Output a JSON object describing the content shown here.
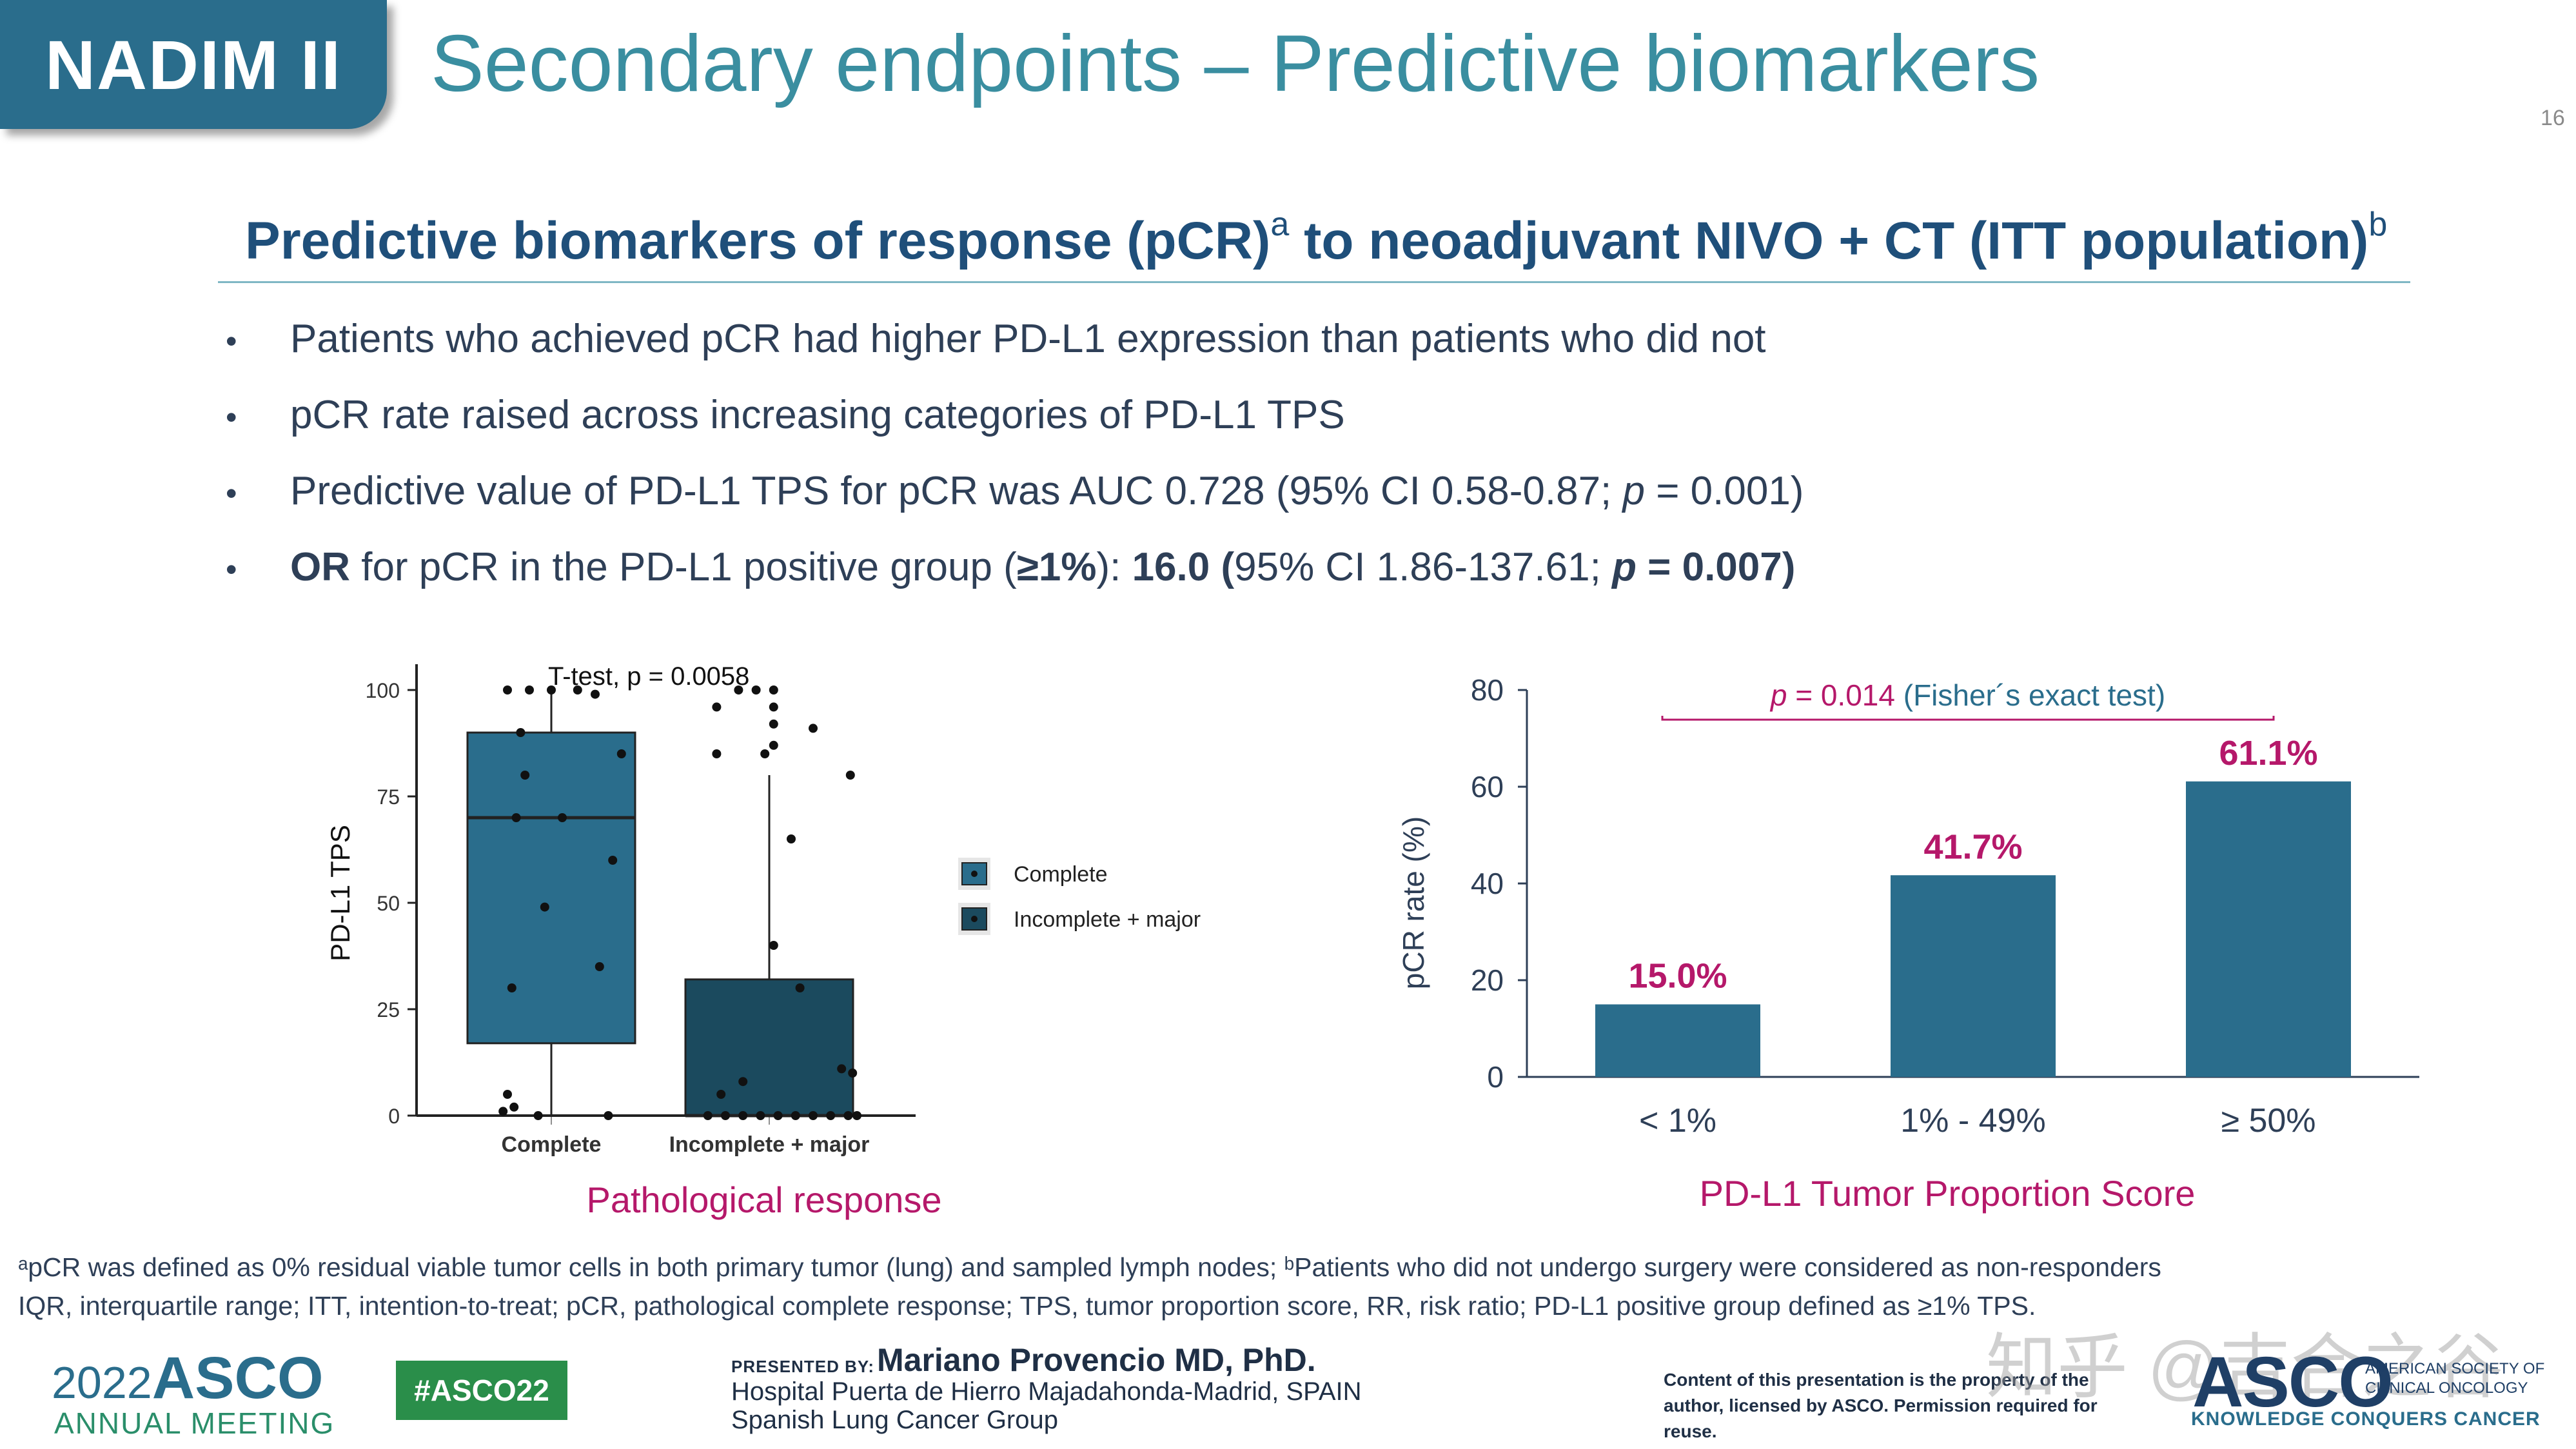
{
  "header": {
    "badge": "NADIM II",
    "title": "Secondary endpoints – Predictive biomarkers",
    "page_number": "16",
    "accent_color": "#2a6d8c"
  },
  "subtitle": {
    "main": "Predictive biomarkers of response (pCR)",
    "sup_a": "a",
    "rest": " to neoadjuvant NIVO + CT (ITT population)",
    "sup_b": "b"
  },
  "bullets": {
    "b1": "Patients who achieved pCR had higher PD-L1 expression than patients who did not",
    "b2": "pCR rate raised across increasing categories of PD-L1 TPS",
    "b3_pre": "Predictive value of PD-L1 TPS for pCR was AUC 0.728 (95% CI 0.58-0.87; ",
    "b3_p": "p",
    "b3_post": " = 0.001)",
    "b4_or": "OR",
    "b4_mid": " for pCR  in the PD-L1 positive group (",
    "b4_ge": "≥1%",
    "b4_after": "): ",
    "b4_val": "16.0 (",
    "b4_ci": "95% CI 1.86-137.61; ",
    "b4_p": "p",
    "b4_pval": " = 0.007)",
    "bullet_char": "•"
  },
  "chart_data": [
    {
      "type": "box",
      "title": "T-test, p = 0.0058",
      "ylabel": "PD-L1 TPS",
      "xlabel": "Pathological response",
      "ylim": [
        0,
        100
      ],
      "yticks": [
        "0",
        "25",
        "50",
        "75",
        "100"
      ],
      "categories": [
        "Complete",
        "Incomplete + major"
      ],
      "legend": [
        "Complete",
        "Incomplete + major"
      ],
      "legend_position": "right",
      "colors": [
        "#2a6d8c",
        "#1b4a5e"
      ],
      "boxes": [
        {
          "name": "Complete",
          "whisker_low": 0,
          "q1": 17,
          "median": 70,
          "q3": 90,
          "whisker_high": 100,
          "points": [
            {
              "x": -0.2,
              "y": 100
            },
            {
              "x": -0.1,
              "y": 100
            },
            {
              "x": 0.0,
              "y": 100
            },
            {
              "x": 0.12,
              "y": 100
            },
            {
              "x": -0.14,
              "y": 90
            },
            {
              "x": 0.2,
              "y": 99
            },
            {
              "x": -0.12,
              "y": 80
            },
            {
              "x": 0.32,
              "y": 85
            },
            {
              "x": -0.16,
              "y": 70
            },
            {
              "x": 0.05,
              "y": 70
            },
            {
              "x": 0.28,
              "y": 60
            },
            {
              "x": -0.03,
              "y": 49
            },
            {
              "x": 0.22,
              "y": 35
            },
            {
              "x": -0.18,
              "y": 30
            },
            {
              "x": -0.2,
              "y": 5
            },
            {
              "x": -0.17,
              "y": 2
            },
            {
              "x": -0.22,
              "y": 1
            },
            {
              "x": -0.06,
              "y": 0
            },
            {
              "x": 0.26,
              "y": 0
            }
          ]
        },
        {
          "name": "Incomplete + major",
          "whisker_low": 0,
          "q1": 0,
          "median": 0,
          "q3": 32,
          "whisker_high": 80,
          "points": [
            {
              "x": -0.24,
              "y": 96
            },
            {
              "x": -0.14,
              "y": 100
            },
            {
              "x": -0.06,
              "y": 100
            },
            {
              "x": 0.02,
              "y": 100
            },
            {
              "x": 0.02,
              "y": 96
            },
            {
              "x": 0.02,
              "y": 92
            },
            {
              "x": 0.02,
              "y": 87
            },
            {
              "x": -0.02,
              "y": 85
            },
            {
              "x": -0.24,
              "y": 85
            },
            {
              "x": 0.2,
              "y": 91
            },
            {
              "x": 0.37,
              "y": 80
            },
            {
              "x": 0.1,
              "y": 65
            },
            {
              "x": 0.02,
              "y": 40
            },
            {
              "x": 0.14,
              "y": 30
            },
            {
              "x": 0.33,
              "y": 11
            },
            {
              "x": 0.38,
              "y": 10
            },
            {
              "x": -0.12,
              "y": 8
            },
            {
              "x": -0.22,
              "y": 5
            },
            {
              "x": -0.28,
              "y": 0
            },
            {
              "x": -0.2,
              "y": 0
            },
            {
              "x": -0.12,
              "y": 0
            },
            {
              "x": -0.04,
              "y": 0
            },
            {
              "x": 0.04,
              "y": 0
            },
            {
              "x": 0.12,
              "y": 0
            },
            {
              "x": 0.2,
              "y": 0
            },
            {
              "x": 0.28,
              "y": 0
            },
            {
              "x": 0.36,
              "y": 0
            },
            {
              "x": 0.4,
              "y": 0
            }
          ]
        }
      ]
    },
    {
      "type": "bar",
      "ylabel": "pCR rate (%)",
      "xlabel": "PD-L1 Tumor Proportion Score",
      "ylim": [
        0,
        80
      ],
      "yticks": [
        "0",
        "20",
        "40",
        "60",
        "80"
      ],
      "categories": [
        "< 1%",
        "1% - 49%",
        "≥ 50%"
      ],
      "values": [
        15.0,
        41.7,
        61.1
      ],
      "value_labels": [
        "15.0%",
        "41.7%",
        "61.1%"
      ],
      "annotation_p": "p",
      "annotation_eq": " = 0.014",
      "annotation_test": " (Fisher´s exact test)",
      "bar_color": "#2a6d8c",
      "label_color": "#b5186a"
    }
  ],
  "footnotes": {
    "line1": "ᵃpCR was defined as 0% residual viable tumor cells in both primary tumor (lung) and sampled lymph nodes; ᵇPatients who did not undergo surgery were considered as non-responders",
    "line2": "IQR, interquartile range; ITT, intention-to-treat; pCR, pathological complete response; TPS, tumor proportion score, RR, risk ratio; PD-L1 positive group defined as ≥1% TPS."
  },
  "footer": {
    "year": "2022",
    "asco": "ASCO",
    "annual_meeting": "ANNUAL MEETING",
    "hashtag": "#ASCO22",
    "presented_by": "PRESENTED BY:",
    "presenter": "Mariano Provencio MD, PhD.",
    "institution": "Hospital Puerta de Hierro Majadahonda-Madrid, SPAIN",
    "group": "Spanish Lung Cancer Group",
    "rights": "Content of this presentation is the property of the author, licensed by ASCO. Permission required for reuse.",
    "asco_logo": "ASCO",
    "society_line1": "AMERICAN SOCIETY OF",
    "society_line2": "CLINICAL ONCOLOGY",
    "tagline": "KNOWLEDGE CONQUERS CANCER",
    "watermark": "知乎 @吉合之谷"
  }
}
